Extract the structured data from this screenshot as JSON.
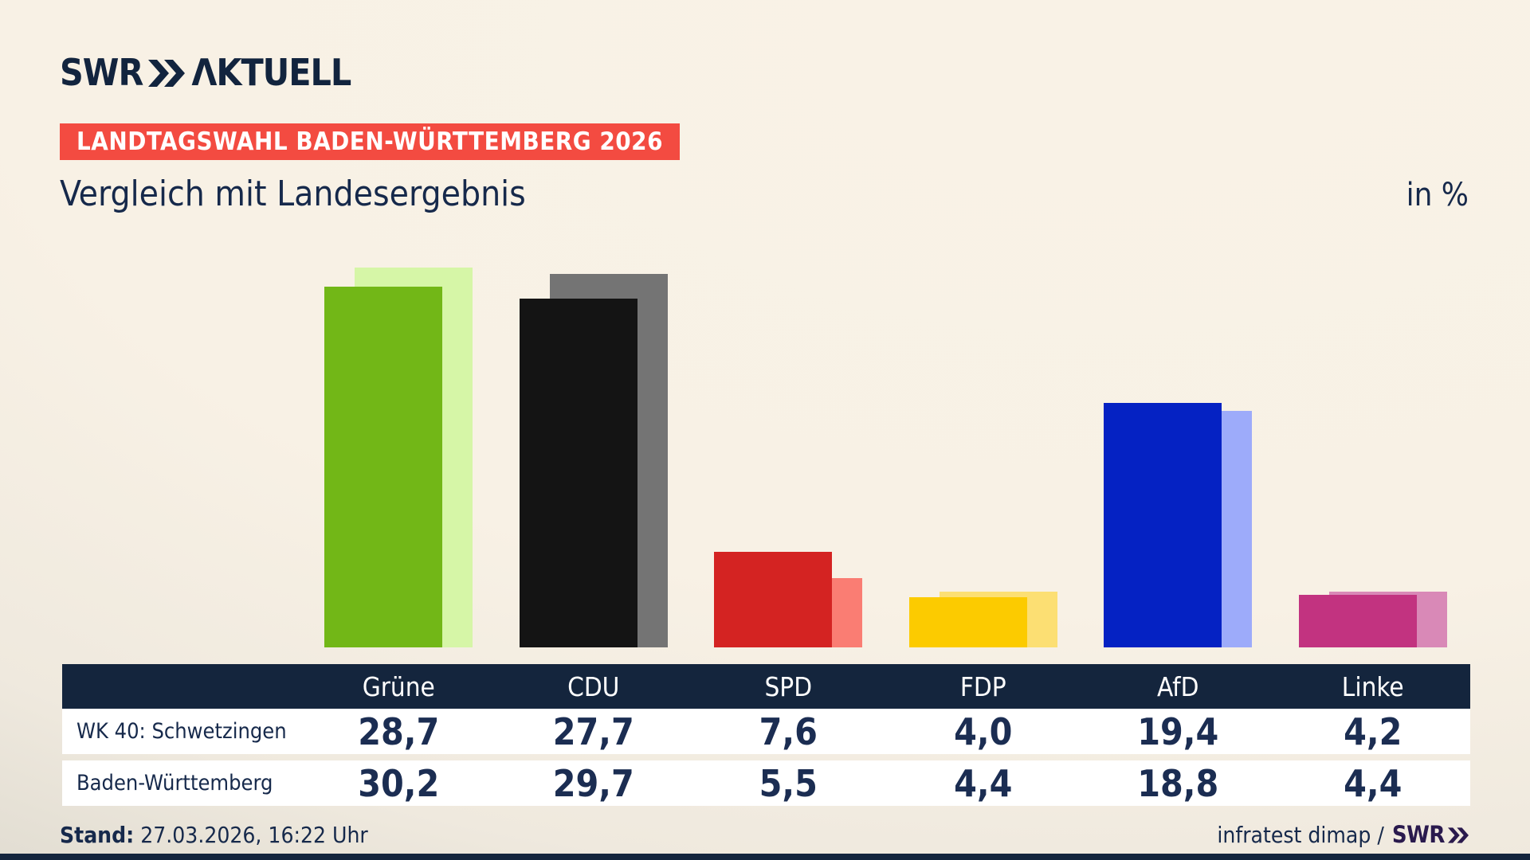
{
  "header": {
    "logo_swr": "SWR",
    "logo_aktuell": "ΛKTUELL",
    "badge": "LANDTAGSWAHL BADEN-WÜRTTEMBERG 2026",
    "title": "Vergleich mit Landesergebnis",
    "unit_label": "in %"
  },
  "chart_data": {
    "type": "bar",
    "title": "Vergleich mit Landesergebnis",
    "unit": "in %",
    "categories": [
      "Grüne",
      "CDU",
      "SPD",
      "FDP",
      "AfD",
      "Linke"
    ],
    "series": [
      {
        "name": "WK 40: Schwetzingen",
        "values": [
          28.7,
          27.7,
          7.6,
          4.0,
          19.4,
          4.2
        ],
        "colors": [
          "#72b717",
          "#141414",
          "#d42322",
          "#fccb00",
          "#0522c3",
          "#c23380"
        ]
      },
      {
        "name": "Baden-Württemberg",
        "values": [
          30.2,
          29.7,
          5.5,
          4.4,
          18.8,
          4.4
        ],
        "colors": [
          "#d6f6a7",
          "#747474",
          "#fa7d73",
          "#fcdf73",
          "#9dabfa",
          "#d989b7"
        ]
      }
    ],
    "ylim": [
      0,
      31
    ],
    "grid": false,
    "legend_position": "table-below-chart"
  },
  "table": {
    "party_headers": [
      "Grüne",
      "CDU",
      "SPD",
      "FDP",
      "AfD",
      "Linke"
    ],
    "rows": [
      {
        "label": "WK 40: Schwetzingen",
        "values": [
          "28,7",
          "27,7",
          "7,6",
          "4,0",
          "19,4",
          "4,2"
        ]
      },
      {
        "label": "Baden-Württemberg",
        "values": [
          "30,2",
          "29,7",
          "5,5",
          "4,4",
          "18,8",
          "4,4"
        ]
      }
    ]
  },
  "footer": {
    "stand_label": "Stand:",
    "stand_value": "27.03.2026, 16:22 Uhr",
    "source_text": "infratest dimap /",
    "source_logo": "SWR"
  },
  "colors": {
    "background_beige": "#f8f1e5",
    "navy": "#14253d",
    "text_navy": "#16294b",
    "badge_red": "#f34b41",
    "footer_logo_purple": "#2a1a4d"
  }
}
